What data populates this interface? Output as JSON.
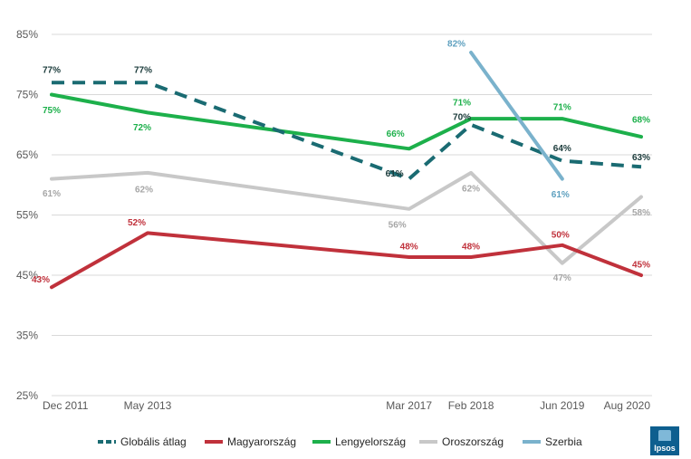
{
  "chart_data": {
    "type": "line",
    "title": "",
    "xlabel": "",
    "ylabel": "",
    "ylim": [
      25,
      85
    ],
    "yticks": [
      "85%",
      "75%",
      "65%",
      "55%",
      "45%",
      "35%",
      "25%"
    ],
    "ytick_values": [
      85,
      75,
      65,
      55,
      45,
      35,
      25
    ],
    "categories": [
      "Dec 2011",
      "May 2013",
      "Mar 2017",
      "Feb 2018",
      "Jun 2019",
      "Aug 2020"
    ],
    "x": [
      2011.92,
      2013.33,
      2017.17,
      2018.08,
      2019.42,
      2020.58
    ],
    "grid": true,
    "legend_position": "bottom",
    "series": [
      {
        "name": "Globális átlag",
        "color": "#1a6b72",
        "dashed": true,
        "x": [
          2011.92,
          2013.33,
          2017.17,
          2018.08,
          2019.42,
          2020.58
        ],
        "values": [
          77,
          77,
          61,
          70,
          64,
          63
        ],
        "labels": [
          "77%",
          "77%",
          "61%",
          "70%",
          "64%",
          "63%"
        ]
      },
      {
        "name": "Magyarország",
        "color": "#c0313b",
        "dashed": false,
        "x": [
          2011.92,
          2013.33,
          2017.17,
          2018.08,
          2019.42,
          2020.58
        ],
        "values": [
          43,
          52,
          48,
          48,
          50,
          45
        ],
        "labels": [
          "43%",
          "52%",
          "48%",
          "48%",
          "50%",
          "45%"
        ]
      },
      {
        "name": "Lengyelország",
        "color": "#1db04b",
        "dashed": false,
        "x": [
          2011.92,
          2013.33,
          2017.17,
          2018.08,
          2019.42,
          2020.58
        ],
        "values": [
          75,
          72,
          66,
          71,
          71,
          68
        ],
        "labels": [
          "75%",
          "72%",
          "66%",
          "71%",
          "71%",
          "68%"
        ]
      },
      {
        "name": "Oroszország",
        "color": "#c8c8c8",
        "dashed": false,
        "x": [
          2011.92,
          2013.33,
          2017.17,
          2018.08,
          2019.42,
          2020.58
        ],
        "values": [
          61,
          62,
          56,
          62,
          47,
          58
        ],
        "labels": [
          "61%",
          "62%",
          "56%",
          "62%",
          "47%",
          "58%"
        ]
      },
      {
        "name": "Szerbia",
        "color": "#7ab2cc",
        "dashed": false,
        "x": [
          2018.08,
          2019.42
        ],
        "values": [
          82,
          61
        ],
        "labels": [
          "82%",
          "61%"
        ]
      }
    ]
  },
  "logo": {
    "text": "Ipsos",
    "color": "#0e5f8f"
  }
}
